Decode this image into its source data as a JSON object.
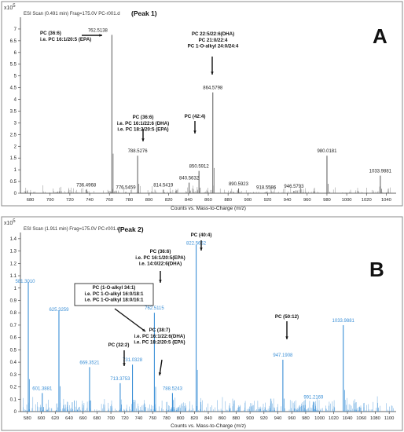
{
  "chart_data": [
    {
      "type": "line",
      "id": "panel-a",
      "panel_letter": "A",
      "title": "(Peak 1)",
      "header": "ESI Scan (0.491 min) Frag=175.0V PC-r001.d",
      "y_exponent": "x10",
      "y_exponent_power": "5",
      "xlabel": "Counts vs. Mass-to-Charge (m/z)",
      "ylabel": "",
      "xlim": [
        670,
        1050
      ],
      "ylim": [
        0,
        7.5
      ],
      "x_ticks": [
        "680",
        "700",
        "720",
        "740",
        "760",
        "780",
        "800",
        "820",
        "840",
        "860",
        "880",
        "900",
        "920",
        "940",
        "960",
        "980",
        "1000",
        "1020",
        "1040"
      ],
      "y_ticks": [
        "0",
        "0.5",
        "1",
        "1.5",
        "2",
        "2.5",
        "3",
        "3.5",
        "4",
        "4.5",
        "5",
        "5.5",
        "6",
        "6.5",
        "7"
      ],
      "grid": false,
      "line_color": "#666666",
      "label_color": "#222222",
      "peaks": [
        {
          "x": 762.5138,
          "y": 6.75,
          "label": "762.5138"
        },
        {
          "x": 864.5798,
          "y": 4.3,
          "label": "864.5798"
        },
        {
          "x": 788.5276,
          "y": 1.6,
          "label": "788.5276"
        },
        {
          "x": 850.5912,
          "y": 0.95,
          "label": "850.5912"
        },
        {
          "x": 980.0181,
          "y": 1.6,
          "label": "980.0181"
        },
        {
          "x": 1033.9881,
          "y": 0.75,
          "label": "1033.9881"
        },
        {
          "x": 736.4968,
          "y": 0.15,
          "label": "736.4968"
        },
        {
          "x": 776.5459,
          "y": 0.05,
          "label": "776.5459"
        },
        {
          "x": 814.5419,
          "y": 0.15,
          "label": "814.5419"
        },
        {
          "x": 840.5632,
          "y": 0.45,
          "label": "840.5632"
        },
        {
          "x": 890.5923,
          "y": 0.2,
          "label": "890.5923"
        },
        {
          "x": 918.5586,
          "y": 0.05,
          "label": "918.5586"
        },
        {
          "x": 946.5793,
          "y": 0.1,
          "label": "946.5793"
        }
      ],
      "annotations": [
        {
          "lines": [
            "PC (36:6)",
            "i.e. PC 16:1/20:5 (EPA)"
          ],
          "target": 762.5138
        },
        {
          "lines": [
            "PC 22:5/22:6(DHA)",
            "PC 21:0/22:4",
            "PC 1-O-alkyl 24:0/24:4"
          ],
          "target": 864.5798
        },
        {
          "lines": [
            "PC (36:6)",
            "i.e. PC 16:1/22:6 (DHA)",
            "i.e. PC 18:2/20:5 (EPA)"
          ],
          "target": 788.5276
        },
        {
          "lines": [
            "PC (42:4)"
          ],
          "target": 850.5912
        }
      ]
    },
    {
      "type": "line",
      "id": "panel-b",
      "panel_letter": "B",
      "title": "(Peak 2)",
      "header": "ESI Scan (1.911 min) Frag=175.0V PC-r001.d",
      "y_exponent": "x10",
      "y_exponent_power": "5",
      "xlabel": "Counts vs. Mass-to-Charge (m/z)",
      "ylabel": "",
      "xlim": [
        570,
        1110
      ],
      "ylim": [
        0,
        1.45
      ],
      "x_ticks": [
        "580",
        "600",
        "620",
        "640",
        "660",
        "680",
        "700",
        "720",
        "740",
        "760",
        "780",
        "800",
        "820",
        "840",
        "860",
        "880",
        "900",
        "920",
        "940",
        "960",
        "980",
        "1000",
        "1020",
        "1040",
        "1060",
        "1080",
        "1100"
      ],
      "y_ticks": [
        "0",
        "0.1",
        "0.2",
        "0.3",
        "0.4",
        "0.5",
        "0.6",
        "0.7",
        "0.8",
        "0.9",
        "1",
        "1.1",
        "1.2",
        "1.3",
        "1.4"
      ],
      "grid": false,
      "line_color": "#3a8fd6",
      "label_color": "#3a8fd6",
      "peaks": [
        {
          "x": 822.5662,
          "y": 1.35,
          "label": "822.5662"
        },
        {
          "x": 581.301,
          "y": 1.05,
          "label": "581.3010"
        },
        {
          "x": 625.3259,
          "y": 0.82,
          "label": "625.3259"
        },
        {
          "x": 762.5115,
          "y": 0.8,
          "label": "762.5115"
        },
        {
          "x": 1033.9881,
          "y": 0.7,
          "label": "1033.9881"
        },
        {
          "x": 731.0328,
          "y": 0.38,
          "label": "731.0328"
        },
        {
          "x": 947.1908,
          "y": 0.42,
          "label": "947.1908"
        },
        {
          "x": 669.3521,
          "y": 0.36,
          "label": "669.3521"
        },
        {
          "x": 713.3753,
          "y": 0.23,
          "label": "713.3753"
        },
        {
          "x": 788.5243,
          "y": 0.15,
          "label": "788.5243"
        },
        {
          "x": 601.3881,
          "y": 0.15,
          "label": "601.3881"
        },
        {
          "x": 991.2169,
          "y": 0.08,
          "label": "991.2169"
        }
      ],
      "annotations": [
        {
          "lines": [
            "PC (40:4)"
          ],
          "target": 822.5662
        },
        {
          "lines": [
            "PC (36:6)",
            "i.e. PC 16:1/20:5(EPA)",
            "i.e. 14:0/22:6(DHA)"
          ],
          "target": 762.5115
        },
        {
          "lines": [
            "PC (1-O-alkyl 34:1)",
            "i.e. PC 1-O-alkyl 16:0/18:1",
            "i.e. PC 1-O-alkyl 18:0/16:1"
          ],
          "target": 731.0328
        },
        {
          "lines": [
            "PC (50:12)"
          ],
          "target": 947.1908
        },
        {
          "lines": [
            "PC (32:2)"
          ],
          "target": 713.3753
        },
        {
          "lines": [
            "PC (38:7)",
            "i.e. PC 16:1/22:6(DHA)",
            "i.e. PC 18:2/20:5 (EPA)"
          ],
          "target": 788.5243
        }
      ]
    }
  ]
}
